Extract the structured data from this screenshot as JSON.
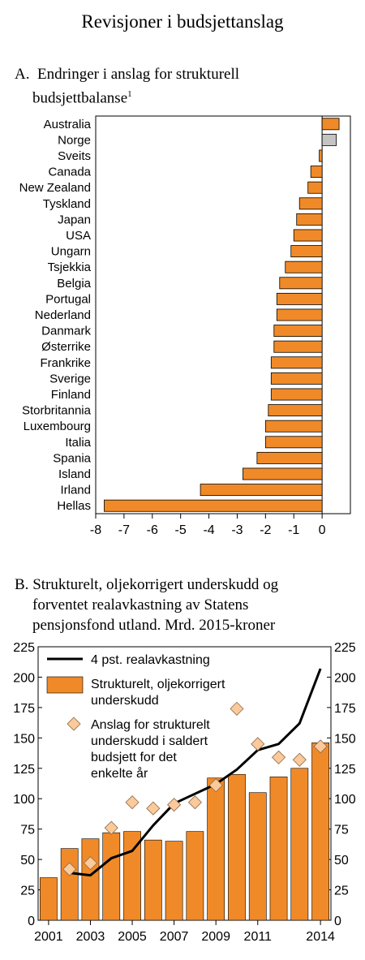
{
  "title": "Revisjoner i budsjettanslag",
  "chart_data": [
    {
      "type": "bar",
      "orientation": "horizontal",
      "title_label": "A.",
      "title_line1": "Endringer i anslag for strukturell",
      "title_line2": "budsjettbalanse",
      "title_footnote": "1",
      "categories": [
        "Australia",
        "Norge",
        "Sveits",
        "Canada",
        "New Zealand",
        "Tyskland",
        "Japan",
        "USA",
        "Ungarn",
        "Tsjekkia",
        "Belgia",
        "Portugal",
        "Nederland",
        "Danmark",
        "Østerrike",
        "Frankrike",
        "Sverige",
        "Finland",
        "Storbritannia",
        "Luxembourg",
        "Italia",
        "Spania",
        "Island",
        "Irland",
        "Hellas"
      ],
      "values": [
        0.6,
        0.5,
        -0.1,
        -0.4,
        -0.5,
        -0.8,
        -0.9,
        -1.0,
        -1.1,
        -1.3,
        -1.5,
        -1.6,
        -1.6,
        -1.7,
        -1.7,
        -1.8,
        -1.8,
        -1.8,
        -1.9,
        -2.0,
        -2.0,
        -2.3,
        -2.8,
        -4.3,
        -7.7
      ],
      "highlight": "Norge",
      "xlim": [
        -8,
        1
      ],
      "xticks": [
        -8,
        -7,
        -6,
        -5,
        -4,
        -3,
        -2,
        -1,
        0
      ],
      "colors": {
        "bar": "#f08a28",
        "highlight": "#c4c4c4"
      }
    },
    {
      "type": "bar+line+scatter",
      "title_label": "B.",
      "title_line1": "Strukturelt, oljekorrigert underskudd og",
      "title_line2": "forventet realavkastning av Statens",
      "title_line3": "pensjonsfond utland. Mrd. 2015-kroner",
      "years": [
        2001,
        2002,
        2003,
        2004,
        2005,
        2006,
        2007,
        2008,
        2009,
        2010,
        2011,
        2012,
        2013,
        2014
      ],
      "xtick_labels": [
        "2001",
        "2003",
        "2005",
        "2007",
        "2009",
        "2011",
        "2014"
      ],
      "xtick_years": [
        2001,
        2003,
        2005,
        2007,
        2009,
        2011,
        2014
      ],
      "ylim": [
        0,
        225
      ],
      "yticks": [
        0,
        25,
        50,
        75,
        100,
        125,
        150,
        175,
        200,
        225
      ],
      "series": [
        {
          "name": "4 pst. realavkastning",
          "kind": "line",
          "x": [
            2002,
            2003,
            2004,
            2005,
            2006,
            2007,
            2008,
            2009,
            2010,
            2011,
            2012,
            2013,
            2014
          ],
          "values": [
            39,
            37,
            51,
            57,
            78,
            96,
            104,
            112,
            124,
            140,
            145,
            162,
            207
          ]
        },
        {
          "name": "Strukturelt, oljekorrigert underskudd",
          "kind": "bar",
          "x": [
            2001,
            2002,
            2003,
            2004,
            2005,
            2006,
            2007,
            2008,
            2009,
            2010,
            2011,
            2012,
            2013,
            2014
          ],
          "values": [
            35,
            59,
            67,
            72,
            73,
            66,
            65,
            73,
            117,
            120,
            105,
            118,
            125,
            146
          ]
        },
        {
          "name": "Anslag for strukturelt underskudd i saldert budsjett for det enkelte år",
          "kind": "scatter",
          "x": [
            2002,
            2003,
            2004,
            2005,
            2006,
            2007,
            2008,
            2009,
            2010,
            2011,
            2012,
            2013,
            2014
          ],
          "values": [
            42,
            47,
            76,
            97,
            92,
            95,
            97,
            111,
            174,
            145,
            134,
            132,
            143
          ]
        }
      ],
      "legend": [
        {
          "lines": [
            "4 pst. realavkastning"
          ]
        },
        {
          "lines": [
            "Strukturelt, oljekorrigert",
            "underskudd"
          ]
        },
        {
          "lines": [
            "Anslag for strukturelt",
            "underskudd i saldert",
            "budsjett for det",
            "enkelte år"
          ]
        }
      ],
      "colors": {
        "bar": "#f08a28",
        "line": "#000000",
        "marker": "#fbc99a"
      }
    }
  ]
}
